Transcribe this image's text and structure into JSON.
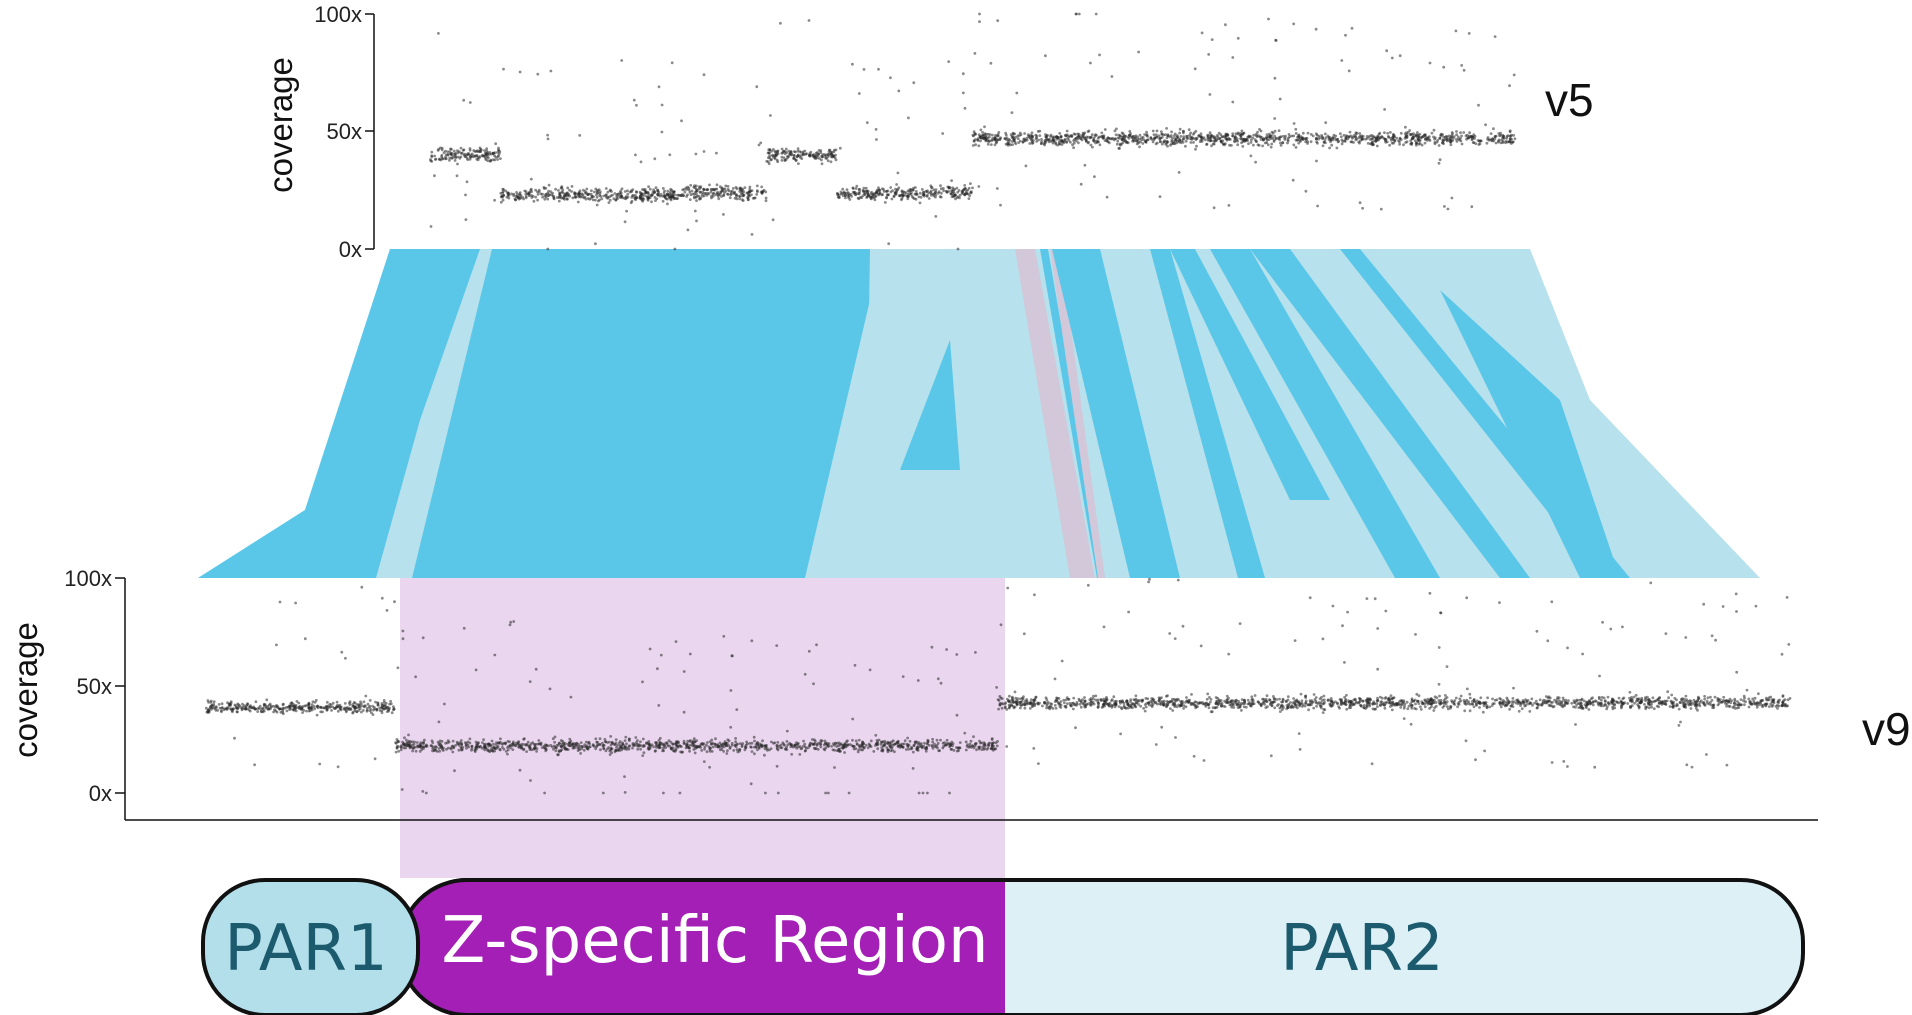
{
  "colors": {
    "synteny_dark": "#5bc7e8",
    "synteny_light": "#b7e1ec",
    "synteny_inverted": "#d2c8da",
    "z_region_highlight": "#ead6ef",
    "par1_fill": "#b3dfeb",
    "zspec_fill": "#a41fb5",
    "par2_fill": "#dcf0f6",
    "par_label": "#1c5a6e",
    "zspec_label": "#ffffff",
    "point": "#2a2a2a"
  },
  "chart_data": [
    {
      "type": "scatter",
      "name": "v5",
      "label": "v5",
      "ylabel": "coverage",
      "ylim": [
        0,
        100
      ],
      "yticks": [
        "0x",
        "50x",
        "100x"
      ],
      "segments": [
        {
          "x": [
            0.0,
            0.13
          ],
          "y": 40
        },
        {
          "x": [
            0.13,
            0.46
          ],
          "y": 23
        },
        {
          "x": [
            0.46,
            0.62
          ],
          "y": 24
        },
        {
          "x": [
            0.62,
            0.75
          ],
          "y": 40
        },
        {
          "x": [
            0.75,
            1.0
          ],
          "y": 24
        },
        {
          "x": [
            1.0,
            1.0
          ],
          "y": 0
        },
        {
          "x": [
            1.0,
            2.0
          ],
          "y": 47
        }
      ]
    },
    {
      "type": "scatter",
      "name": "v9",
      "label": "v9",
      "ylabel": "coverage",
      "ylim": [
        0,
        100
      ],
      "yticks": [
        "0x",
        "50x",
        "100x"
      ],
      "regions": [
        {
          "name": "PAR1",
          "x": [
            0.0,
            0.12
          ],
          "coverage": 40
        },
        {
          "name": "Z-specific Region",
          "x": [
            0.12,
            0.5
          ],
          "coverage": 22
        },
        {
          "name": "PAR2",
          "x": [
            0.5,
            1.0
          ],
          "coverage": 42
        }
      ]
    }
  ],
  "region_bar": {
    "par1": "PAR1",
    "zspecific": "Z-specific Region",
    "par2": "PAR2"
  }
}
